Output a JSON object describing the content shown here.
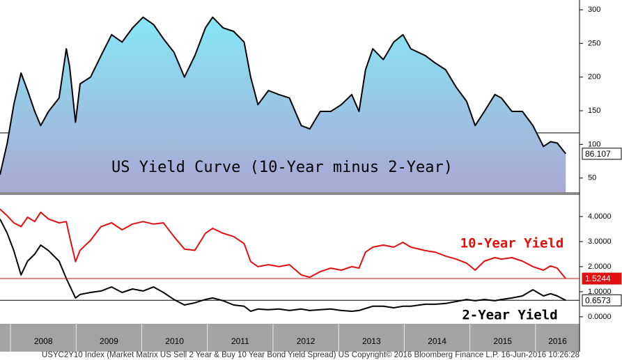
{
  "chart_data": [
    {
      "type": "area",
      "title": "US Yield Curve (10-Year minus 2-Year)",
      "x": [
        2007.84,
        2007.95,
        2008.05,
        2008.16,
        2008.26,
        2008.37,
        2008.46,
        2008.58,
        2008.74,
        2008.85,
        2008.9,
        2008.99,
        2009.06,
        2009.22,
        2009.38,
        2009.54,
        2009.7,
        2009.86,
        2010.02,
        2010.18,
        2010.33,
        2010.49,
        2010.65,
        2010.81,
        2010.97,
        2011.08,
        2011.24,
        2011.4,
        2011.56,
        2011.66,
        2011.77,
        2011.93,
        2012.09,
        2012.25,
        2012.43,
        2012.56,
        2012.72,
        2012.88,
        2013.04,
        2013.2,
        2013.31,
        2013.41,
        2013.52,
        2013.68,
        2013.84,
        2013.98,
        2014.1,
        2014.32,
        2014.47,
        2014.63,
        2014.79,
        2014.95,
        2015.08,
        2015.22,
        2015.38,
        2015.48,
        2015.64,
        2015.8,
        2015.96,
        2016.12,
        2016.23,
        2016.33,
        2016.46
      ],
      "values": [
        55,
        102,
        159,
        206,
        180,
        149,
        128,
        149,
        169,
        242,
        216,
        133,
        190,
        200,
        232,
        263,
        252,
        273,
        289,
        278,
        257,
        237,
        200,
        232,
        273,
        289,
        273,
        268,
        252,
        200,
        159,
        180,
        174,
        169,
        128,
        123,
        149,
        149,
        159,
        174,
        149,
        211,
        242,
        226,
        252,
        263,
        242,
        232,
        221,
        211,
        185,
        164,
        128,
        149,
        174,
        169,
        149,
        149,
        128,
        97,
        104,
        102,
        86.107
      ],
      "color": "#000000",
      "fill_top": "#86e6f6",
      "fill_bottom": "#aaa8d4",
      "xlim": [
        2007.84,
        2016.67
      ],
      "ylim": [
        29,
        314.5
      ],
      "yticks": [
        50,
        100,
        150,
        200,
        250,
        300
      ],
      "reference_line": 117,
      "last_value_tag": true
    },
    {
      "type": "line",
      "x": [
        2007.84,
        2007.95,
        2008.05,
        2008.16,
        2008.26,
        2008.37,
        2008.46,
        2008.58,
        2008.74,
        2008.85,
        2008.9,
        2008.99,
        2009.06,
        2009.22,
        2009.38,
        2009.54,
        2009.7,
        2009.86,
        2010.02,
        2010.18,
        2010.33,
        2010.49,
        2010.65,
        2010.81,
        2010.97,
        2011.08,
        2011.24,
        2011.4,
        2011.56,
        2011.66,
        2011.77,
        2011.93,
        2012.09,
        2012.25,
        2012.43,
        2012.56,
        2012.72,
        2012.88,
        2013.04,
        2013.2,
        2013.31,
        2013.41,
        2013.52,
        2013.68,
        2013.84,
        2013.98,
        2014.1,
        2014.32,
        2014.47,
        2014.63,
        2014.79,
        2014.95,
        2015.08,
        2015.22,
        2015.38,
        2015.48,
        2015.64,
        2015.8,
        2015.96,
        2016.12,
        2016.23,
        2016.33,
        2016.46
      ],
      "series": [
        {
          "name": "10-Year Yield",
          "color": "#e01010",
          "values": [
            4.3,
            4.03,
            3.75,
            3.6,
            3.97,
            3.8,
            4.17,
            3.9,
            3.75,
            3.8,
            3.2,
            2.2,
            2.65,
            3.05,
            3.6,
            3.75,
            3.47,
            3.7,
            3.8,
            3.7,
            3.75,
            3.2,
            2.7,
            2.65,
            3.33,
            3.53,
            3.33,
            3.2,
            2.92,
            2.2,
            2.0,
            2.08,
            2.0,
            2.08,
            1.67,
            1.58,
            1.8,
            1.94,
            1.86,
            2.0,
            1.94,
            2.58,
            2.78,
            2.86,
            2.78,
            2.97,
            2.78,
            2.64,
            2.58,
            2.42,
            2.3,
            2.14,
            1.86,
            2.22,
            2.36,
            2.3,
            2.36,
            2.22,
            2.0,
            1.86,
            2.03,
            1.94,
            1.5244
          ]
        },
        {
          "name": "2-Year Yield",
          "color": "#000000",
          "values": [
            3.9,
            3.33,
            2.64,
            1.67,
            2.22,
            2.5,
            2.86,
            2.64,
            2.22,
            1.53,
            1.25,
            0.75,
            0.89,
            0.97,
            1.03,
            1.19,
            0.97,
            1.11,
            1.03,
            1.19,
            0.97,
            0.69,
            0.47,
            0.56,
            0.69,
            0.75,
            0.64,
            0.47,
            0.42,
            0.22,
            0.31,
            0.28,
            0.31,
            0.25,
            0.31,
            0.25,
            0.28,
            0.31,
            0.25,
            0.22,
            0.25,
            0.33,
            0.42,
            0.42,
            0.36,
            0.42,
            0.42,
            0.5,
            0.5,
            0.53,
            0.61,
            0.69,
            0.64,
            0.69,
            0.64,
            0.69,
            0.75,
            0.83,
            1.08,
            0.83,
            0.92,
            0.83,
            0.6573
          ]
        }
      ],
      "xlim": [
        2007.84,
        2016.67
      ],
      "ylim": [
        -0.28,
        4.86
      ],
      "yticks": [
        {
          "value": 0,
          "label": "0.0000"
        },
        {
          "value": 1,
          "label": "1.0000"
        },
        {
          "value": 2,
          "label": "2.0000"
        },
        {
          "value": 3,
          "label": "3.0000"
        },
        {
          "value": 4,
          "label": "4.0000"
        }
      ],
      "xticks": [
        2008,
        2009,
        2010,
        2011,
        2012,
        2013,
        2014,
        2015,
        2016
      ],
      "last_value_tag": true
    }
  ],
  "footer": "USYC2Y10 Index (Market Matrix US Sell 2 Year & Buy 10 Year Bond Yield Spread) US Copyright© 2016 Bloomberg Finance L.P. 16-Jun-2016 10:26:28"
}
